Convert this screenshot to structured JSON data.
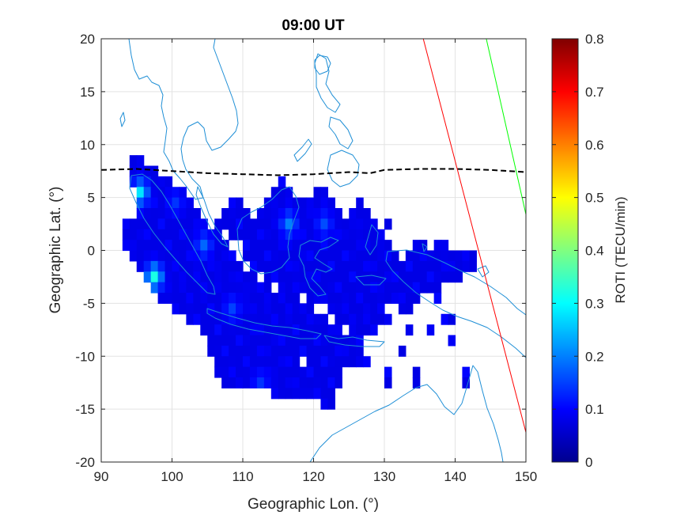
{
  "chart_data": {
    "type": "heatmap",
    "title": "09:00 UT",
    "xlabel": "Geographic Lon. (°)",
    "ylabel": "Geographic Lat. (°)",
    "xlim": [
      90,
      150
    ],
    "ylim": [
      -20,
      20
    ],
    "xticks": [
      90,
      100,
      110,
      120,
      130,
      140,
      150
    ],
    "yticks": [
      20,
      15,
      10,
      5,
      0,
      -5,
      -10,
      -15,
      -20
    ],
    "grid": true,
    "colorbar": {
      "label": "ROTI (TECU/min)",
      "range": [
        0,
        0.8
      ],
      "ticks": [
        0,
        0.1,
        0.2,
        0.3,
        0.4,
        0.5,
        0.6,
        0.7,
        0.8
      ],
      "colormap": "jet"
    },
    "cell_size_deg": 1.0,
    "typical_roti": 0.08,
    "coverage_rows": [
      {
        "lat": 8,
        "lon_ranges": [
          [
            94,
            96
          ]
        ]
      },
      {
        "lat": 7,
        "lon_ranges": [
          [
            94,
            98
          ]
        ]
      },
      {
        "lat": 6,
        "lon_ranges": [
          [
            94,
            100
          ],
          [
            115,
            116
          ]
        ]
      },
      {
        "lat": 5,
        "lon_ranges": [
          [
            95,
            102
          ],
          [
            114,
            117
          ],
          [
            120,
            122
          ]
        ]
      },
      {
        "lat": 4,
        "lon_ranges": [
          [
            95,
            103
          ],
          [
            108,
            110
          ],
          [
            113,
            123
          ],
          [
            126,
            127
          ]
        ]
      },
      {
        "lat": 3,
        "lon_ranges": [
          [
            95,
            104
          ],
          [
            107,
            111
          ],
          [
            112,
            124
          ],
          [
            125,
            128
          ]
        ]
      },
      {
        "lat": 2,
        "lon_ranges": [
          [
            93,
            105
          ],
          [
            106,
            129
          ],
          [
            130,
            131
          ]
        ]
      },
      {
        "lat": 1,
        "lon_ranges": [
          [
            93,
            107
          ],
          [
            108,
            130
          ]
        ]
      },
      {
        "lat": 0,
        "lon_ranges": [
          [
            93,
            108
          ],
          [
            110,
            131
          ],
          [
            134,
            136
          ],
          [
            137,
            139
          ]
        ]
      },
      {
        "lat": -1,
        "lon_ranges": [
          [
            94,
            109
          ],
          [
            110,
            132
          ],
          [
            133,
            143
          ]
        ]
      },
      {
        "lat": -2,
        "lon_ranges": [
          [
            95,
            110
          ],
          [
            111,
            143
          ]
        ]
      },
      {
        "lat": -3,
        "lon_ranges": [
          [
            96,
            112
          ],
          [
            113,
            141
          ]
        ]
      },
      {
        "lat": -4,
        "lon_ranges": [
          [
            97,
            114
          ],
          [
            115,
            138
          ]
        ]
      },
      {
        "lat": -5,
        "lon_ranges": [
          [
            98,
            118
          ],
          [
            119,
            135
          ],
          [
            137,
            138
          ]
        ]
      },
      {
        "lat": -6,
        "lon_ranges": [
          [
            100,
            120
          ],
          [
            122,
            130
          ],
          [
            132,
            134
          ]
        ]
      },
      {
        "lat": -7,
        "lon_ranges": [
          [
            102,
            122
          ],
          [
            123,
            131
          ],
          [
            138,
            140
          ]
        ]
      },
      {
        "lat": -8,
        "lon_ranges": [
          [
            104,
            124
          ],
          [
            125,
            129
          ],
          [
            133,
            134
          ],
          [
            136,
            137
          ]
        ]
      },
      {
        "lat": -9,
        "lon_ranges": [
          [
            105,
            127
          ],
          [
            139,
            140
          ]
        ]
      },
      {
        "lat": -10,
        "lon_ranges": [
          [
            105,
            127
          ],
          [
            132,
            133
          ]
        ]
      },
      {
        "lat": -11,
        "lon_ranges": [
          [
            106,
            118
          ],
          [
            119,
            128
          ]
        ]
      },
      {
        "lat": -12,
        "lon_ranges": [
          [
            106,
            124
          ],
          [
            130,
            131
          ],
          [
            134,
            135
          ],
          [
            141,
            142
          ]
        ]
      },
      {
        "lat": -13,
        "lon_ranges": [
          [
            107,
            124
          ],
          [
            130,
            131
          ],
          [
            134,
            135
          ],
          [
            141,
            142
          ]
        ]
      },
      {
        "lat": -14,
        "lon_ranges": [
          [
            114,
            123
          ]
        ]
      },
      {
        "lat": -15,
        "lon_ranges": [
          [
            121,
            123
          ]
        ]
      }
    ],
    "hotspots": [
      {
        "lon": 95.5,
        "lat": 5.5,
        "roti": 0.28
      },
      {
        "lon": 97.5,
        "lat": -2.5,
        "roti": 0.32
      },
      {
        "lon": 104.5,
        "lat": 0.5,
        "roti": 0.18
      },
      {
        "lon": 116.5,
        "lat": 2.5,
        "roti": 0.2
      },
      {
        "lon": 121.5,
        "lat": 2.5,
        "roti": 0.16
      },
      {
        "lon": 108.5,
        "lat": -5.5,
        "roti": 0.15
      },
      {
        "lon": 100.5,
        "lat": 4.5,
        "roti": 0.14
      },
      {
        "lon": 112.5,
        "lat": -12.5,
        "roti": 0.14
      }
    ],
    "overlay_lines": [
      {
        "style": "dashed",
        "color": "#000000",
        "points": [
          [
            90,
            7.6
          ],
          [
            95,
            7.7
          ],
          [
            100,
            7.5
          ],
          [
            105,
            7.3
          ],
          [
            110,
            7.2
          ],
          [
            115,
            7.1
          ],
          [
            120,
            7.2
          ],
          [
            125,
            7.4
          ],
          [
            128,
            7.3
          ],
          [
            130,
            7.6
          ],
          [
            135,
            7.7
          ],
          [
            140,
            7.7
          ],
          [
            145,
            7.6
          ],
          [
            150,
            7.4
          ]
        ]
      },
      {
        "style": "solid",
        "color": "#ff0000",
        "points": [
          [
            135.5,
            20
          ],
          [
            150,
            -17.2
          ]
        ]
      },
      {
        "style": "solid",
        "color": "#00ff00",
        "points": [
          [
            144.4,
            20
          ],
          [
            150,
            3.4
          ]
        ]
      }
    ],
    "coastline_color": "#1f8fd6"
  }
}
